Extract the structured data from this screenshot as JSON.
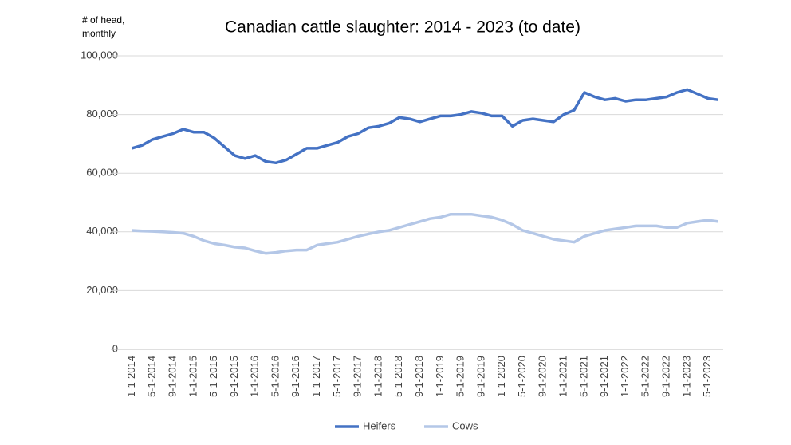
{
  "chart_data": {
    "type": "line",
    "title": "Canadian cattle slaughter: 2014 - 2023 (to date)",
    "y_label": "# of head, monthly",
    "categories": [
      "1-1-2014",
      null,
      "5-1-2014",
      null,
      "9-1-2014",
      null,
      "1-1-2015",
      null,
      "5-1-2015",
      null,
      "9-1-2015",
      null,
      "1-1-2016",
      null,
      "5-1-2016",
      null,
      "9-1-2016",
      null,
      "1-1-2017",
      null,
      "5-1-2017",
      null,
      "9-1-2017",
      null,
      "1-1-2018",
      null,
      "5-1-2018",
      null,
      "9-1-2018",
      null,
      "1-1-2019",
      null,
      "5-1-2019",
      null,
      "9-1-2019",
      null,
      "1-1-2020",
      null,
      "5-1-2020",
      null,
      "9-1-2020",
      null,
      "1-1-2021",
      null,
      "5-1-2021",
      null,
      "9-1-2021",
      null,
      "1-1-2022",
      null,
      "5-1-2022",
      null,
      "9-1-2022",
      null,
      "1-1-2023",
      null,
      "5-1-2023",
      null
    ],
    "series": [
      {
        "name": "Heifers",
        "color": "#4472c4",
        "values": [
          68500,
          69500,
          71500,
          72500,
          73500,
          75000,
          74000,
          74000,
          72000,
          69000,
          66000,
          65000,
          66000,
          64000,
          63500,
          64500,
          66500,
          68500,
          68500,
          69500,
          70500,
          72500,
          73500,
          75500,
          76000,
          77000,
          79000,
          78500,
          77500,
          78500,
          79500,
          79500,
          80000,
          81000,
          80500,
          79500,
          79500,
          76000,
          78000,
          78500,
          78000,
          77500,
          80000,
          81500,
          87500,
          86000,
          85000,
          85500,
          84500,
          85000,
          85000,
          85500,
          86000,
          87500,
          88500,
          87000,
          85500,
          85000
        ]
      },
      {
        "name": "Cows",
        "color": "#b4c7e7",
        "values": [
          40500,
          40300,
          40200,
          40000,
          39800,
          39500,
          38500,
          37000,
          36000,
          35500,
          34800,
          34500,
          33500,
          32700,
          33000,
          33500,
          33800,
          33800,
          35500,
          36000,
          36500,
          37500,
          38500,
          39300,
          40000,
          40500,
          41500,
          42500,
          43500,
          44500,
          45000,
          46000,
          46000,
          46000,
          45500,
          45000,
          44000,
          42500,
          40500,
          39500,
          38500,
          37500,
          37000,
          36500,
          38500,
          39500,
          40500,
          41000,
          41500,
          42000,
          42000,
          42000,
          41500,
          41500,
          43000,
          43500,
          44000,
          43500
        ]
      }
    ],
    "ylim": [
      0,
      100000
    ],
    "yticks": [
      0,
      {
        "value": 20000,
        "label": "20,000"
      },
      {
        "value": 40000,
        "label": "40,000"
      },
      {
        "value": 60000,
        "label": "60,000"
      },
      {
        "value": 80000,
        "label": "80,000"
      },
      {
        "value": 100000,
        "label": "100,000"
      }
    ],
    "grid": true,
    "legend": "bottom"
  }
}
